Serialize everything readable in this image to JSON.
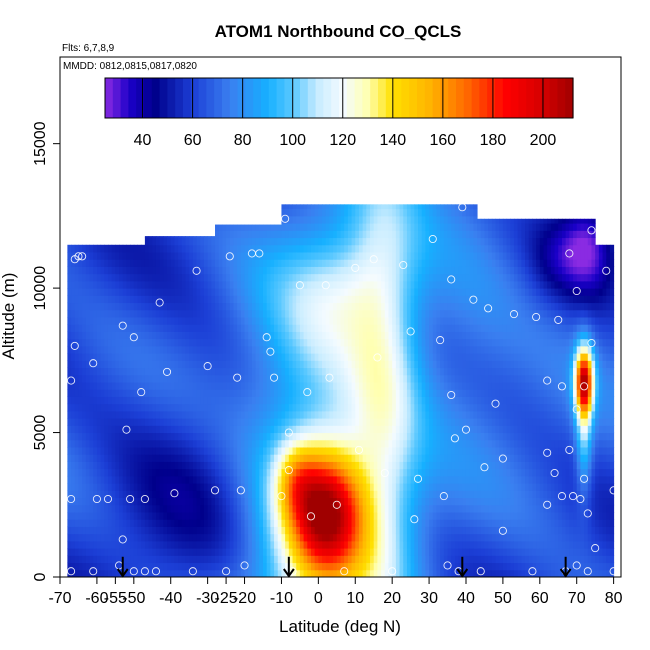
{
  "chart_data": {
    "type": "heatmap",
    "title": "ATOM1 Northbound CO_QCLS",
    "annotations": [
      "Flts: 6,7,8,9",
      "MMDD: 0812,0815,0817,0820"
    ],
    "xlabel": "Latitude (deg N)",
    "ylabel": "Altitude (m)",
    "xlim": [
      -70,
      82
    ],
    "ylim": [
      0,
      18000
    ],
    "x_ticks": [
      -70,
      -60,
      -55,
      -50,
      -40,
      -30,
      -25,
      -20,
      -10,
      0,
      10,
      20,
      30,
      40,
      50,
      60,
      70,
      80
    ],
    "x_tick_labels": [
      "-70",
      "-60",
      "-55",
      "-50",
      "-40",
      "-30",
      "-25",
      "-20",
      "-10",
      "0",
      "10",
      "20",
      "30",
      "40",
      "50",
      "60",
      "70",
      "80"
    ],
    "y_ticks": [
      0,
      5000,
      10000,
      15000
    ],
    "y_tick_labels": [
      "0",
      "5000",
      "10000",
      "15000"
    ],
    "colorbar": {
      "range": [
        25,
        212
      ],
      "ticks": [
        40,
        60,
        80,
        100,
        120,
        140,
        160,
        180,
        200
      ],
      "tick_labels": [
        "40",
        "60",
        "80",
        "100",
        "120",
        "140",
        "160",
        "180",
        "200"
      ],
      "stops": [
        {
          "v": 25,
          "c": "#8a2be2"
        },
        {
          "v": 35,
          "c": "#1a00c8"
        },
        {
          "v": 45,
          "c": "#00008b"
        },
        {
          "v": 60,
          "c": "#1c3fd6"
        },
        {
          "v": 75,
          "c": "#3a7ff0"
        },
        {
          "v": 90,
          "c": "#16b0ff"
        },
        {
          "v": 100,
          "c": "#5ac8ff"
        },
        {
          "v": 110,
          "c": "#c8ecff"
        },
        {
          "v": 120,
          "c": "#f4fbff"
        },
        {
          "v": 130,
          "c": "#ffffb0"
        },
        {
          "v": 140,
          "c": "#ffe000"
        },
        {
          "v": 155,
          "c": "#ffb300"
        },
        {
          "v": 170,
          "c": "#ff6600"
        },
        {
          "v": 185,
          "c": "#ff0000"
        },
        {
          "v": 200,
          "c": "#d40000"
        },
        {
          "v": 212,
          "c": "#a00000"
        }
      ]
    },
    "field_extent": {
      "lat": [
        -68,
        80
      ],
      "layer_tops_by_lat": [
        {
          "lat": [
            -68,
            -47
          ],
          "alt_max": 11500
        },
        {
          "lat": [
            -47,
            -28
          ],
          "alt_max": 11800
        },
        {
          "lat": [
            -28,
            -10
          ],
          "alt_max": 12200
        },
        {
          "lat": [
            -10,
            43
          ],
          "alt_max": 12900
        },
        {
          "lat": [
            43,
            75
          ],
          "alt_max": 12400
        },
        {
          "lat": [
            75,
            80
          ],
          "alt_max": 11500
        }
      ]
    },
    "background_value": 65,
    "field_features": [
      {
        "lat": 0,
        "alt": 1200,
        "sx": 14,
        "sy": 7000,
        "amp": 55
      },
      {
        "lat": 2,
        "alt": 2300,
        "sx": 7,
        "sy": 1500,
        "amp": 95
      },
      {
        "lat": -6,
        "alt": 3400,
        "sx": 4,
        "sy": 900,
        "amp": 30
      },
      {
        "lat": 18,
        "alt": 7000,
        "sx": 7,
        "sy": 5500,
        "amp": 40
      },
      {
        "lat": 8,
        "alt": 10000,
        "sx": 10,
        "sy": 1500,
        "amp": 20
      },
      {
        "lat": 72,
        "alt": 6800,
        "sx": 1.8,
        "sy": 800,
        "amp": 110
      },
      {
        "lat": 72,
        "alt": 5300,
        "sx": 1.5,
        "sy": 1600,
        "amp": 40
      },
      {
        "lat": 40,
        "alt": 8500,
        "sx": 12,
        "sy": 2500,
        "amp": 15
      },
      {
        "lat": -35,
        "alt": 3000,
        "sx": 18,
        "sy": 4000,
        "amp": -12
      },
      {
        "lat": 73,
        "alt": 11500,
        "sx": 5,
        "sy": 1200,
        "amp": -30
      },
      {
        "lat": 64,
        "alt": 11000,
        "sx": 5,
        "sy": 1000,
        "amp": -12
      }
    ],
    "sample_points": [
      {
        "lat": -67,
        "alt": 200
      },
      {
        "lat": -67,
        "alt": 2700
      },
      {
        "lat": -67,
        "alt": 6800
      },
      {
        "lat": -66,
        "alt": 8000
      },
      {
        "lat": -66,
        "alt": 11000
      },
      {
        "lat": -65,
        "alt": 11100
      },
      {
        "lat": -64,
        "alt": 11100
      },
      {
        "lat": -61,
        "alt": 200
      },
      {
        "lat": -61,
        "alt": 7400
      },
      {
        "lat": -60,
        "alt": 2700
      },
      {
        "lat": -57,
        "alt": 2700
      },
      {
        "lat": -54,
        "alt": 400
      },
      {
        "lat": -53,
        "alt": 1300
      },
      {
        "lat": -53,
        "alt": 8700
      },
      {
        "lat": -52,
        "alt": 5100
      },
      {
        "lat": -51,
        "alt": 2700
      },
      {
        "lat": -50,
        "alt": 200
      },
      {
        "lat": -50,
        "alt": 8300
      },
      {
        "lat": -48,
        "alt": 6400
      },
      {
        "lat": -47,
        "alt": 200
      },
      {
        "lat": -47,
        "alt": 2700
      },
      {
        "lat": -44,
        "alt": 200
      },
      {
        "lat": -43,
        "alt": 9500
      },
      {
        "lat": -41,
        "alt": 7100
      },
      {
        "lat": -39,
        "alt": 2900
      },
      {
        "lat": -34,
        "alt": 200
      },
      {
        "lat": -33,
        "alt": 10600
      },
      {
        "lat": -30,
        "alt": 7300
      },
      {
        "lat": -28,
        "alt": 3000
      },
      {
        "lat": -25,
        "alt": 200
      },
      {
        "lat": -24,
        "alt": 11100
      },
      {
        "lat": -22,
        "alt": 6900
      },
      {
        "lat": -21,
        "alt": 3000
      },
      {
        "lat": -20,
        "alt": 400
      },
      {
        "lat": -18,
        "alt": 11200
      },
      {
        "lat": -16,
        "alt": 11200
      },
      {
        "lat": -14,
        "alt": 8300
      },
      {
        "lat": -13,
        "alt": 7800
      },
      {
        "lat": -12,
        "alt": 6900
      },
      {
        "lat": -10,
        "alt": 2800
      },
      {
        "lat": -9,
        "alt": 12400
      },
      {
        "lat": -8,
        "alt": 5000
      },
      {
        "lat": -8,
        "alt": 3700
      },
      {
        "lat": -7,
        "alt": 200
      },
      {
        "lat": -5,
        "alt": 10100
      },
      {
        "lat": -3,
        "alt": 6400
      },
      {
        "lat": -2,
        "alt": 2100
      },
      {
        "lat": 2,
        "alt": 10100
      },
      {
        "lat": 3,
        "alt": 6900
      },
      {
        "lat": 5,
        "alt": 2500
      },
      {
        "lat": 7,
        "alt": 200
      },
      {
        "lat": 10,
        "alt": 10700
      },
      {
        "lat": 11,
        "alt": 4400
      },
      {
        "lat": 15,
        "alt": 11000
      },
      {
        "lat": 16,
        "alt": 7600
      },
      {
        "lat": 18,
        "alt": 3600
      },
      {
        "lat": 20,
        "alt": 200
      },
      {
        "lat": 23,
        "alt": 10800
      },
      {
        "lat": 25,
        "alt": 8500
      },
      {
        "lat": 26,
        "alt": 2000
      },
      {
        "lat": 27,
        "alt": 3400
      },
      {
        "lat": 31,
        "alt": 11700
      },
      {
        "lat": 33,
        "alt": 8200
      },
      {
        "lat": 34,
        "alt": 2800
      },
      {
        "lat": 35,
        "alt": 400
      },
      {
        "lat": 36,
        "alt": 10300
      },
      {
        "lat": 36,
        "alt": 6300
      },
      {
        "lat": 37,
        "alt": 4800
      },
      {
        "lat": 38,
        "alt": 200
      },
      {
        "lat": 39,
        "alt": 12800
      },
      {
        "lat": 40,
        "alt": 5100
      },
      {
        "lat": 42,
        "alt": 9600
      },
      {
        "lat": 44,
        "alt": 200
      },
      {
        "lat": 45,
        "alt": 3800
      },
      {
        "lat": 46,
        "alt": 9300
      },
      {
        "lat": 48,
        "alt": 6000
      },
      {
        "lat": 50,
        "alt": 1600
      },
      {
        "lat": 50,
        "alt": 4100
      },
      {
        "lat": 53,
        "alt": 9100
      },
      {
        "lat": 58,
        "alt": 200
      },
      {
        "lat": 59,
        "alt": 9000
      },
      {
        "lat": 62,
        "alt": 2500
      },
      {
        "lat": 62,
        "alt": 4300
      },
      {
        "lat": 62,
        "alt": 6800
      },
      {
        "lat": 64,
        "alt": 3600
      },
      {
        "lat": 65,
        "alt": 8900
      },
      {
        "lat": 66,
        "alt": 2800
      },
      {
        "lat": 66,
        "alt": 6600
      },
      {
        "lat": 67,
        "alt": 200
      },
      {
        "lat": 68,
        "alt": 4400
      },
      {
        "lat": 68,
        "alt": 11200
      },
      {
        "lat": 69,
        "alt": 2800
      },
      {
        "lat": 70,
        "alt": 400
      },
      {
        "lat": 70,
        "alt": 9900
      },
      {
        "lat": 70,
        "alt": 5800
      },
      {
        "lat": 71,
        "alt": 2700
      },
      {
        "lat": 72,
        "alt": 6600
      },
      {
        "lat": 72,
        "alt": 3400
      },
      {
        "lat": 73,
        "alt": 200
      },
      {
        "lat": 73,
        "alt": 2200
      },
      {
        "lat": 74,
        "alt": 8100
      },
      {
        "lat": 74,
        "alt": 12000
      },
      {
        "lat": 75,
        "alt": 1000
      },
      {
        "lat": 78,
        "alt": 10600
      },
      {
        "lat": 80,
        "alt": 200
      },
      {
        "lat": 80,
        "alt": 3000
      }
    ],
    "arrows": [
      {
        "lat": -53,
        "alt_top": 700,
        "alt_bottom": 0
      },
      {
        "lat": -8,
        "alt_top": 700,
        "alt_bottom": 0
      },
      {
        "lat": 39,
        "alt_top": 700,
        "alt_bottom": 0
      },
      {
        "lat": 67,
        "alt_top": 700,
        "alt_bottom": 0
      }
    ]
  }
}
